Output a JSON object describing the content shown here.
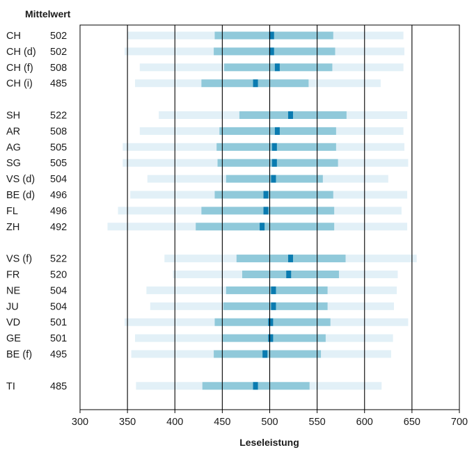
{
  "chart_data": {
    "type": "box",
    "title": "",
    "column_header": "Mittelwert",
    "xlabel": "Leseleistung",
    "ylabel": "",
    "xlim": [
      300,
      700
    ],
    "x_ticks": [
      300,
      350,
      400,
      450,
      500,
      550,
      600,
      650,
      700
    ],
    "grid": "vertical lines at 350–650",
    "colors": {
      "outer": "#e2f0f7",
      "inner": "#90c9da",
      "mean": "#0a7bb0",
      "grid": "#000000"
    },
    "groups": [
      {
        "rows": [
          {
            "label": "CH",
            "mean": 502,
            "p5": 350,
            "p25": 442,
            "p75": 567,
            "p95": 641
          },
          {
            "label": "CH (d)",
            "mean": 502,
            "p5": 347,
            "p25": 441,
            "p75": 569,
            "p95": 642
          },
          {
            "label": "CH (f)",
            "mean": 508,
            "p5": 363,
            "p25": 452,
            "p75": 566,
            "p95": 641
          },
          {
            "label": "CH (i)",
            "mean": 485,
            "p5": 358,
            "p25": 428,
            "p75": 541,
            "p95": 617
          }
        ]
      },
      {
        "rows": [
          {
            "label": "SH",
            "mean": 522,
            "p5": 383,
            "p25": 468,
            "p75": 581,
            "p95": 645
          },
          {
            "label": "AR",
            "mean": 508,
            "p5": 363,
            "p25": 447,
            "p75": 570,
            "p95": 641
          },
          {
            "label": "AG",
            "mean": 505,
            "p5": 345,
            "p25": 444,
            "p75": 570,
            "p95": 642
          },
          {
            "label": "SG",
            "mean": 505,
            "p5": 345,
            "p25": 445,
            "p75": 572,
            "p95": 646
          },
          {
            "label": "VS (d)",
            "mean": 504,
            "p5": 371,
            "p25": 454,
            "p75": 556,
            "p95": 625
          },
          {
            "label": "BE (d)",
            "mean": 496,
            "p5": 353,
            "p25": 442,
            "p75": 567,
            "p95": 645
          },
          {
            "label": "FL",
            "mean": 496,
            "p5": 340,
            "p25": 428,
            "p75": 568,
            "p95": 639
          },
          {
            "label": "ZH",
            "mean": 492,
            "p5": 329,
            "p25": 422,
            "p75": 568,
            "p95": 645
          }
        ]
      },
      {
        "rows": [
          {
            "label": "VS (f)",
            "mean": 522,
            "p5": 389,
            "p25": 465,
            "p75": 580,
            "p95": 655
          },
          {
            "label": "FR",
            "mean": 520,
            "p5": 398,
            "p25": 471,
            "p75": 573,
            "p95": 635
          },
          {
            "label": "NE",
            "mean": 504,
            "p5": 370,
            "p25": 454,
            "p75": 561,
            "p95": 634
          },
          {
            "label": "JU",
            "mean": 504,
            "p5": 374,
            "p25": 451,
            "p75": 561,
            "p95": 631
          },
          {
            "label": "VD",
            "mean": 501,
            "p5": 347,
            "p25": 442,
            "p75": 564,
            "p95": 646
          },
          {
            "label": "GE",
            "mean": 501,
            "p5": 358,
            "p25": 450,
            "p75": 559,
            "p95": 630
          },
          {
            "label": "BE (f)",
            "mean": 495,
            "p5": 354,
            "p25": 441,
            "p75": 554,
            "p95": 628
          }
        ]
      },
      {
        "rows": [
          {
            "label": "TI",
            "mean": 485,
            "p5": 359,
            "p25": 429,
            "p75": 542,
            "p95": 618
          }
        ]
      }
    ]
  }
}
